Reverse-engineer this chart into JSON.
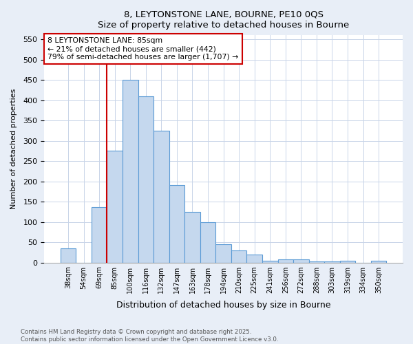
{
  "title_line1": "8, LEYTONSTONE LANE, BOURNE, PE10 0QS",
  "title_line2": "Size of property relative to detached houses in Bourne",
  "xlabel": "Distribution of detached houses by size in Bourne",
  "ylabel": "Number of detached properties",
  "categories": [
    "38sqm",
    "54sqm",
    "69sqm",
    "85sqm",
    "100sqm",
    "116sqm",
    "132sqm",
    "147sqm",
    "163sqm",
    "178sqm",
    "194sqm",
    "210sqm",
    "225sqm",
    "241sqm",
    "256sqm",
    "272sqm",
    "288sqm",
    "303sqm",
    "319sqm",
    "334sqm",
    "350sqm"
  ],
  "values": [
    35,
    0,
    137,
    275,
    450,
    410,
    325,
    190,
    125,
    100,
    45,
    30,
    20,
    5,
    8,
    8,
    3,
    3,
    5,
    0,
    5
  ],
  "bar_color": "#c5d8ee",
  "bar_edge_color": "#5b9bd5",
  "vline_color": "#cc0000",
  "vline_index": 3,
  "annotation_text": "8 LEYTONSTONE LANE: 85sqm\n← 21% of detached houses are smaller (442)\n79% of semi-detached houses are larger (1,707) →",
  "annotation_box_color": "#cc0000",
  "ylim": [
    0,
    560
  ],
  "yticks": [
    0,
    50,
    100,
    150,
    200,
    250,
    300,
    350,
    400,
    450,
    500,
    550
  ],
  "footer": "Contains HM Land Registry data © Crown copyright and database right 2025.\nContains public sector information licensed under the Open Government Licence v3.0.",
  "bg_color": "#e8eef7",
  "plot_bg_color": "#ffffff",
  "grid_color": "#c8d4e8"
}
